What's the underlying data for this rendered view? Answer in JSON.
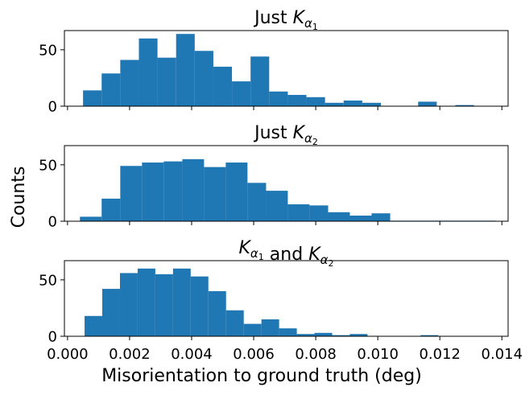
{
  "figure": {
    "ylabel": "Counts",
    "xlabel": "Misorientation to ground truth (deg)"
  },
  "chart_data": [
    {
      "type": "bar",
      "title": "Just K_{α1}",
      "title_parts": {
        "text": "Just ",
        "symbol": "K",
        "subscript": "α",
        "subsubscript": "1"
      },
      "xlim": [
        -0.0001,
        0.0142
      ],
      "ylim": [
        0,
        67
      ],
      "yticks": [
        0,
        50
      ],
      "bar_color": "#1f77b4",
      "bins": [
        {
          "x0": 0.0005,
          "x1": 0.0011,
          "value": 14
        },
        {
          "x0": 0.0011,
          "x1": 0.0017,
          "value": 29
        },
        {
          "x0": 0.0017,
          "x1": 0.0023,
          "value": 41
        },
        {
          "x0": 0.0023,
          "x1": 0.0029,
          "value": 60
        },
        {
          "x0": 0.0029,
          "x1": 0.0035,
          "value": 43
        },
        {
          "x0": 0.0035,
          "x1": 0.0041,
          "value": 64
        },
        {
          "x0": 0.0041,
          "x1": 0.0047,
          "value": 49
        },
        {
          "x0": 0.0047,
          "x1": 0.0053,
          "value": 35
        },
        {
          "x0": 0.0053,
          "x1": 0.0059,
          "value": 22
        },
        {
          "x0": 0.0059,
          "x1": 0.0065,
          "value": 44
        },
        {
          "x0": 0.0065,
          "x1": 0.0071,
          "value": 13
        },
        {
          "x0": 0.0071,
          "x1": 0.0077,
          "value": 10
        },
        {
          "x0": 0.0077,
          "x1": 0.0083,
          "value": 8
        },
        {
          "x0": 0.0083,
          "x1": 0.0089,
          "value": 3
        },
        {
          "x0": 0.0089,
          "x1": 0.0095,
          "value": 5
        },
        {
          "x0": 0.0095,
          "x1": 0.0101,
          "value": 3
        },
        {
          "x0": 0.0101,
          "x1": 0.0107,
          "value": 0
        },
        {
          "x0": 0.0107,
          "x1": 0.0113,
          "value": 0
        },
        {
          "x0": 0.0113,
          "x1": 0.0119,
          "value": 4
        },
        {
          "x0": 0.0119,
          "x1": 0.0125,
          "value": 0
        },
        {
          "x0": 0.0125,
          "x1": 0.0131,
          "value": 1
        }
      ]
    },
    {
      "type": "bar",
      "title": "Just K_{α2}",
      "title_parts": {
        "text": "Just ",
        "symbol": "K",
        "subscript": "α",
        "subsubscript": "2"
      },
      "xlim": [
        -0.0001,
        0.0142
      ],
      "ylim": [
        0,
        67
      ],
      "yticks": [
        0,
        50
      ],
      "bar_color": "#1f77b4",
      "bins": [
        {
          "x0": 0.0004,
          "x1": 0.0011,
          "value": 4
        },
        {
          "x0": 0.0011,
          "x1": 0.0017,
          "value": 20
        },
        {
          "x0": 0.0017,
          "x1": 0.0024,
          "value": 49
        },
        {
          "x0": 0.0024,
          "x1": 0.0031,
          "value": 52
        },
        {
          "x0": 0.0031,
          "x1": 0.0037,
          "value": 53
        },
        {
          "x0": 0.0037,
          "x1": 0.0044,
          "value": 55
        },
        {
          "x0": 0.0044,
          "x1": 0.0051,
          "value": 48
        },
        {
          "x0": 0.0051,
          "x1": 0.0058,
          "value": 52
        },
        {
          "x0": 0.0058,
          "x1": 0.0064,
          "value": 34
        },
        {
          "x0": 0.0064,
          "x1": 0.0071,
          "value": 27
        },
        {
          "x0": 0.0071,
          "x1": 0.0078,
          "value": 15
        },
        {
          "x0": 0.0078,
          "x1": 0.0084,
          "value": 14
        },
        {
          "x0": 0.0084,
          "x1": 0.0091,
          "value": 8
        },
        {
          "x0": 0.0091,
          "x1": 0.0098,
          "value": 5
        },
        {
          "x0": 0.0098,
          "x1": 0.0104,
          "value": 7
        },
        {
          "x0": 0.0104,
          "x1": 0.0111,
          "value": 0.5
        },
        {
          "x0": 0.0111,
          "x1": 0.0118,
          "value": 0.5
        },
        {
          "x0": 0.0118,
          "x1": 0.0125,
          "value": 0.5
        },
        {
          "x0": 0.0125,
          "x1": 0.0131,
          "value": 0.5
        },
        {
          "x0": 0.0131,
          "x1": 0.0138,
          "value": 0.5
        }
      ]
    },
    {
      "type": "bar",
      "title": "K_{α1} and K_{α2}",
      "title_parts": {
        "symbol": "K",
        "subscript": "α",
        "subsubscript": "1",
        "middle": " and ",
        "symbol2": "K",
        "subscript2": "α",
        "subsubscript2": "2"
      },
      "xlim": [
        -0.0001,
        0.0142
      ],
      "ylim": [
        0,
        67
      ],
      "yticks": [
        0,
        50
      ],
      "xticks": [
        "0.000",
        "0.002",
        "0.004",
        "0.006",
        "0.008",
        "0.010",
        "0.012",
        "0.014"
      ],
      "xtick_values": [
        0.0,
        0.002,
        0.004,
        0.006,
        0.008,
        0.01,
        0.012,
        0.014
      ],
      "bar_color": "#1f77b4",
      "bins": [
        {
          "x0": 0.00055,
          "x1": 0.00112,
          "value": 18
        },
        {
          "x0": 0.00112,
          "x1": 0.00169,
          "value": 42
        },
        {
          "x0": 0.00169,
          "x1": 0.00226,
          "value": 56
        },
        {
          "x0": 0.00226,
          "x1": 0.00283,
          "value": 60
        },
        {
          "x0": 0.00283,
          "x1": 0.0034,
          "value": 55
        },
        {
          "x0": 0.0034,
          "x1": 0.00397,
          "value": 60
        },
        {
          "x0": 0.00397,
          "x1": 0.00454,
          "value": 53
        },
        {
          "x0": 0.00454,
          "x1": 0.00511,
          "value": 40
        },
        {
          "x0": 0.00511,
          "x1": 0.00568,
          "value": 23
        },
        {
          "x0": 0.00568,
          "x1": 0.00625,
          "value": 11
        },
        {
          "x0": 0.00625,
          "x1": 0.00682,
          "value": 15
        },
        {
          "x0": 0.00682,
          "x1": 0.00739,
          "value": 7
        },
        {
          "x0": 0.00739,
          "x1": 0.00796,
          "value": 2
        },
        {
          "x0": 0.00796,
          "x1": 0.00853,
          "value": 3
        },
        {
          "x0": 0.00853,
          "x1": 0.0091,
          "value": 1
        },
        {
          "x0": 0.0091,
          "x1": 0.00967,
          "value": 2
        },
        {
          "x0": 0.00967,
          "x1": 0.01024,
          "value": 0
        },
        {
          "x0": 0.01024,
          "x1": 0.01081,
          "value": 0
        },
        {
          "x0": 0.01081,
          "x1": 0.01138,
          "value": 0
        },
        {
          "x0": 0.01138,
          "x1": 0.01195,
          "value": 1
        }
      ]
    }
  ]
}
